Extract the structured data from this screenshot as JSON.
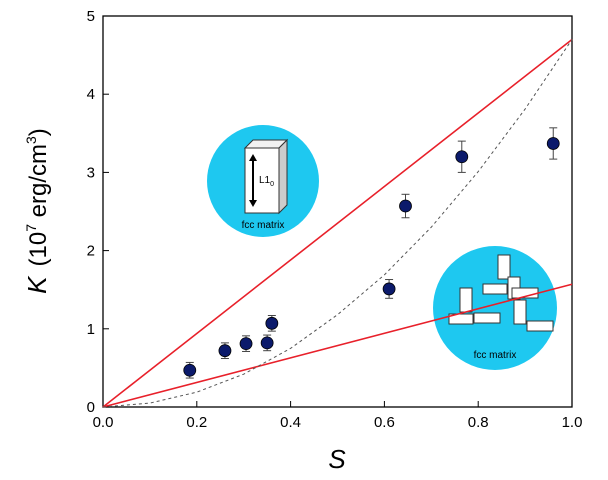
{
  "chart_data": {
    "type": "scatter",
    "xlabel": "S",
    "ylabel": {
      "symbol": "K",
      "open": "(10",
      "exp": "7",
      "unit": " erg/cm",
      "unit_exp": "3",
      "close": ")"
    },
    "xlim": [
      0,
      1
    ],
    "ylim": [
      0,
      5
    ],
    "xticks": [
      {
        "value": 0,
        "label": "0.0"
      },
      0.2,
      0.4,
      0.6,
      0.8,
      {
        "value": 1,
        "label": "1.0"
      }
    ],
    "yticks": [
      0,
      1,
      2,
      3,
      4,
      5
    ],
    "series": [
      {
        "type": "scatter",
        "color": "#0b1a6b",
        "x": [
          0.185,
          0.26,
          0.305,
          0.35,
          0.36,
          0.61,
          0.645,
          0.765,
          0.96
        ],
        "values": [
          0.47,
          0.72,
          0.81,
          0.82,
          1.07,
          1.51,
          2.57,
          3.2,
          3.37
        ],
        "errors": [
          0.1,
          0.1,
          0.1,
          0.1,
          0.1,
          0.12,
          0.15,
          0.2,
          0.2
        ]
      },
      {
        "type": "line",
        "color": "#e8202a",
        "x": [
          0,
          1
        ],
        "values": [
          0,
          4.7
        ]
      },
      {
        "type": "line",
        "color": "#e8202a",
        "x": [
          0,
          1
        ],
        "values": [
          0,
          1.57
        ]
      },
      {
        "type": "line",
        "color": "#555555",
        "dashed": true,
        "x": [
          0,
          0.1,
          0.2,
          0.3,
          0.4,
          0.5,
          0.6,
          0.7,
          0.8,
          0.9,
          1
        ],
        "values": [
          0,
          0.05,
          0.19,
          0.42,
          0.75,
          1.18,
          1.69,
          2.3,
          3.01,
          3.81,
          4.7
        ]
      }
    ],
    "insets": [
      {
        "label": "L1",
        "sub": "0",
        "caption": "fcc matrix"
      },
      {
        "caption": "fcc matrix"
      }
    ]
  }
}
